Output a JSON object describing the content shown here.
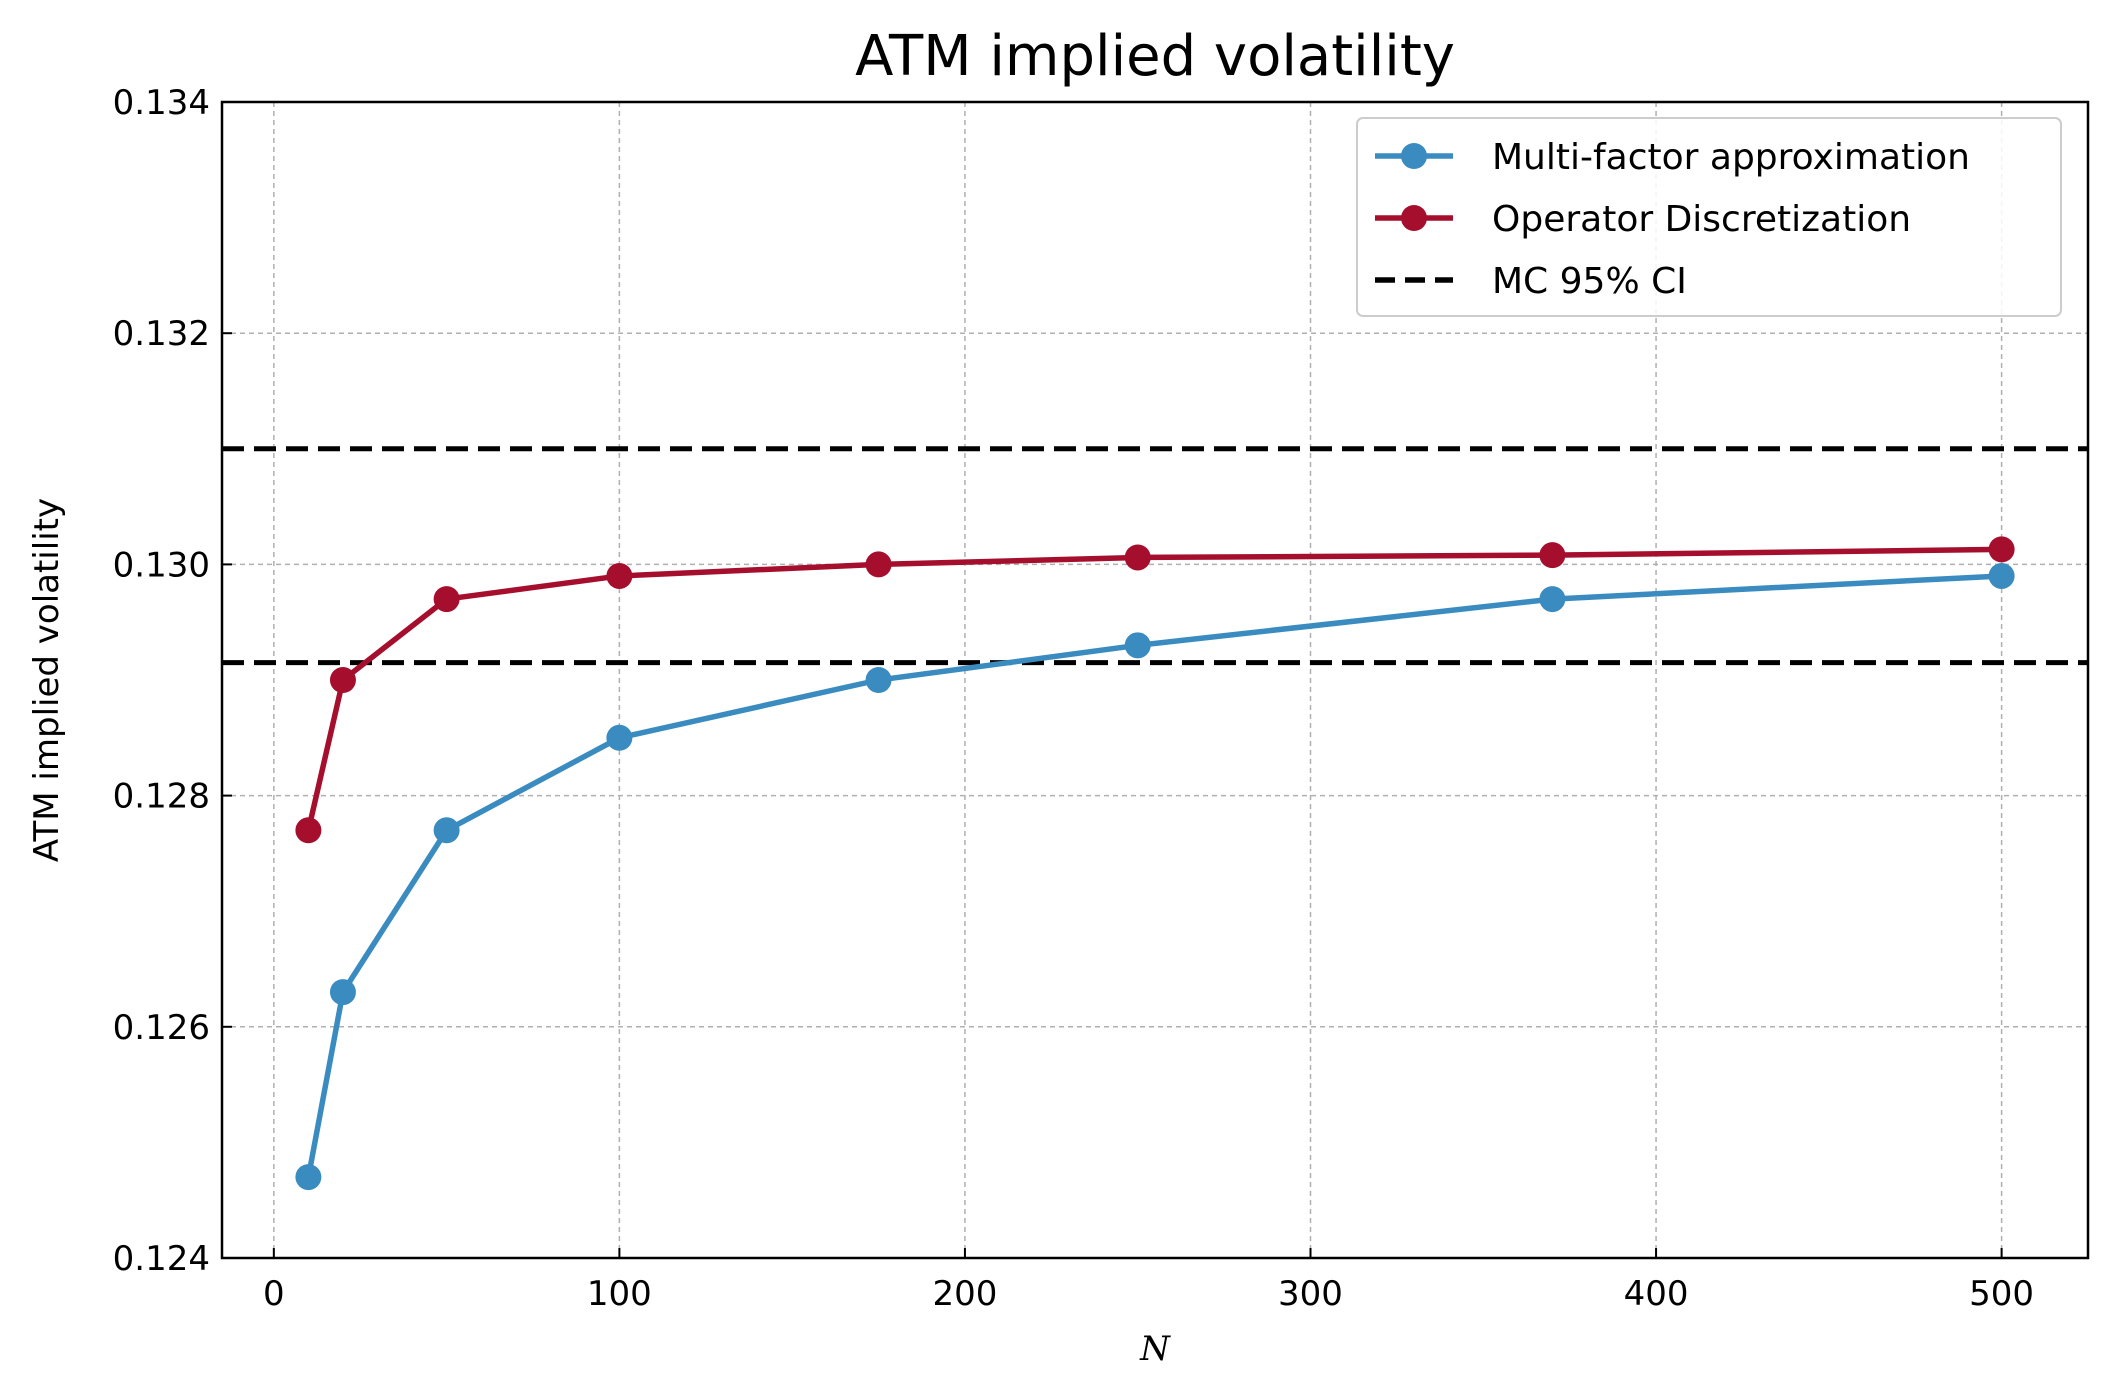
{
  "chart_data": {
    "type": "line",
    "title": "ATM implied volatility",
    "xlabel": "N",
    "ylabel": "ATM implied volatility",
    "xlim": [
      -15,
      525
    ],
    "ylim": [
      0.124,
      0.134
    ],
    "xticks": [
      0,
      100,
      200,
      300,
      400,
      500
    ],
    "xtick_labels": [
      "0",
      "100",
      "200",
      "300",
      "400",
      "500"
    ],
    "yticks": [
      0.124,
      0.126,
      0.128,
      0.13,
      0.132,
      0.134
    ],
    "ytick_labels": [
      "0.124",
      "0.126",
      "0.128",
      "0.130",
      "0.132",
      "0.134"
    ],
    "grid": true,
    "legend_position": "top-right",
    "series": [
      {
        "name": "Multi-factor approximation",
        "color": "#3a8bbf",
        "style": "solid-marker",
        "x": [
          10,
          20,
          50,
          100,
          175,
          250,
          370,
          500
        ],
        "values": [
          0.1247,
          0.1263,
          0.1277,
          0.1285,
          0.129,
          0.1293,
          0.1297,
          0.1299
        ]
      },
      {
        "name": "Operator Discretization",
        "color": "#a50f2d",
        "style": "solid-marker",
        "x": [
          10,
          20,
          50,
          100,
          175,
          250,
          370,
          500
        ],
        "values": [
          0.1277,
          0.129,
          0.1297,
          0.1299,
          0.13,
          0.13006,
          0.13008,
          0.13013
        ]
      }
    ],
    "reference_lines": {
      "name": "MC 95% CI",
      "color": "#000000",
      "style": "dashed",
      "values": [
        0.131,
        0.12915
      ]
    }
  }
}
